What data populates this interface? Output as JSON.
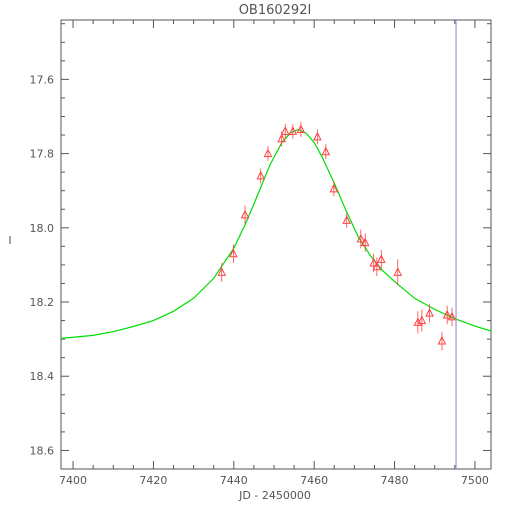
{
  "chart_data": {
    "type": "scatter",
    "title": "OB160292I",
    "xlabel": "JD - 2450000",
    "ylabel": "I",
    "xlim": [
      7397,
      7504
    ],
    "ylim": [
      18.65,
      17.44
    ],
    "y_inverted": true,
    "grid": false,
    "xticks": [
      7400,
      7420,
      7440,
      7460,
      7480,
      7500
    ],
    "yticks": [
      17.6,
      17.8,
      18.0,
      18.2,
      18.4,
      18.6
    ],
    "ytick_labels": [
      "17.6",
      "17.8",
      "18.0",
      "18.2",
      "18.4",
      "18.6"
    ],
    "colors": {
      "fit": "#00dd00",
      "points": "#ff4040",
      "marker_line": "#9a9ad6"
    },
    "vertical_line_x": 7495.3,
    "model": {
      "name": "",
      "curve": [
        [
          7397,
          18.298
        ],
        [
          7405,
          18.29
        ],
        [
          7410,
          18.28
        ],
        [
          7415,
          18.266
        ],
        [
          7420,
          18.25
        ],
        [
          7425,
          18.225
        ],
        [
          7430,
          18.19
        ],
        [
          7435,
          18.136
        ],
        [
          7440,
          18.055
        ],
        [
          7443,
          17.987
        ],
        [
          7446,
          17.91
        ],
        [
          7449,
          17.83
        ],
        [
          7452,
          17.77
        ],
        [
          7454,
          17.745
        ],
        [
          7456,
          17.735
        ],
        [
          7458,
          17.745
        ],
        [
          7460,
          17.77
        ],
        [
          7462,
          17.81
        ],
        [
          7465,
          17.88
        ],
        [
          7468,
          17.955
        ],
        [
          7471,
          18.025
        ],
        [
          7474,
          18.075
        ],
        [
          7477,
          18.115
        ],
        [
          7480,
          18.145
        ],
        [
          7485,
          18.19
        ],
        [
          7490,
          18.22
        ],
        [
          7495,
          18.245
        ],
        [
          7500,
          18.265
        ],
        [
          7504,
          18.278
        ]
      ]
    },
    "series": [
      {
        "name": "",
        "points": [
          {
            "x": 7437.0,
            "y": 18.12,
            "err": 0.025
          },
          {
            "x": 7439.9,
            "y": 18.07,
            "err": 0.025
          },
          {
            "x": 7442.8,
            "y": 17.965,
            "err": 0.025
          },
          {
            "x": 7446.7,
            "y": 17.86,
            "err": 0.02
          },
          {
            "x": 7448.5,
            "y": 17.8,
            "err": 0.02
          },
          {
            "x": 7451.9,
            "y": 17.76,
            "err": 0.02
          },
          {
            "x": 7452.8,
            "y": 17.74,
            "err": 0.02
          },
          {
            "x": 7454.7,
            "y": 17.74,
            "err": 0.02
          },
          {
            "x": 7456.7,
            "y": 17.735,
            "err": 0.02
          },
          {
            "x": 7460.8,
            "y": 17.755,
            "err": 0.02
          },
          {
            "x": 7462.9,
            "y": 17.795,
            "err": 0.02
          },
          {
            "x": 7464.9,
            "y": 17.895,
            "err": 0.02
          },
          {
            "x": 7468.1,
            "y": 17.98,
            "err": 0.02
          },
          {
            "x": 7471.6,
            "y": 18.03,
            "err": 0.025
          },
          {
            "x": 7472.7,
            "y": 18.04,
            "err": 0.025
          },
          {
            "x": 7474.8,
            "y": 18.095,
            "err": 0.025
          },
          {
            "x": 7475.6,
            "y": 18.105,
            "err": 0.025
          },
          {
            "x": 7476.7,
            "y": 18.085,
            "err": 0.025
          },
          {
            "x": 7480.8,
            "y": 18.12,
            "err": 0.035
          },
          {
            "x": 7485.8,
            "y": 18.255,
            "err": 0.03
          },
          {
            "x": 7486.8,
            "y": 18.25,
            "err": 0.03
          },
          {
            "x": 7488.7,
            "y": 18.23,
            "err": 0.025
          },
          {
            "x": 7491.8,
            "y": 18.305,
            "err": 0.025
          },
          {
            "x": 7493.1,
            "y": 18.235,
            "err": 0.025
          },
          {
            "x": 7494.3,
            "y": 18.24,
            "err": 0.025
          }
        ]
      }
    ]
  }
}
